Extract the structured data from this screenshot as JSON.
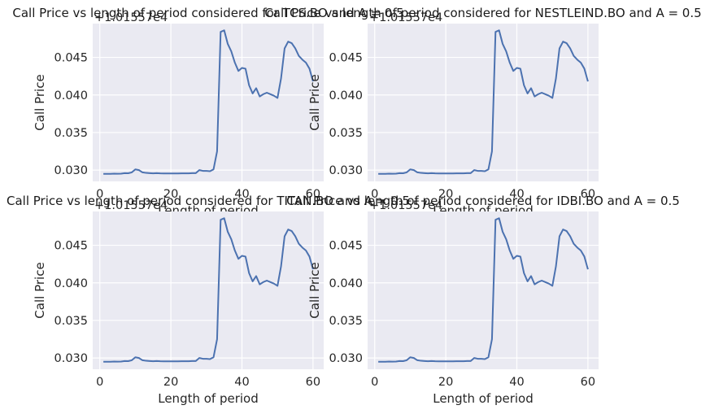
{
  "chart_data": [
    {
      "type": "line",
      "title": "Call Price vs length of period considered for TCS.BO and A = 0.5",
      "xlabel": "Length of period",
      "ylabel": "Call Price",
      "offset_text": "+1.01557e4",
      "xlim": [
        -2,
        63
      ],
      "ylim": [
        0.0285,
        0.0495
      ],
      "xticks": [
        0,
        20,
        40,
        60
      ],
      "yticks": [
        0.03,
        0.035,
        0.04,
        0.045
      ],
      "ytick_labels": [
        "0.030",
        "0.035",
        "0.040",
        "0.045"
      ],
      "grid": true,
      "line_color": "#4c72b0",
      "series": [
        {
          "x": [
            1,
            2,
            3,
            4,
            5,
            6,
            7,
            8,
            9,
            10,
            11,
            12,
            13,
            14,
            15,
            16,
            17,
            18,
            19,
            20,
            21,
            22,
            23,
            24,
            25,
            26,
            27,
            28,
            29,
            30,
            31,
            32,
            33,
            34,
            35,
            36,
            37,
            38,
            39,
            40,
            41,
            42,
            43,
            44,
            45,
            46,
            47,
            48,
            49,
            50,
            51,
            52,
            53,
            54,
            55,
            56,
            57,
            58,
            59,
            60
          ],
          "values": [
            0.0295,
            0.0295,
            0.0295,
            0.02953,
            0.02952,
            0.02953,
            0.0296,
            0.02958,
            0.0297,
            0.0301,
            0.03,
            0.0297,
            0.02963,
            0.0296,
            0.02957,
            0.0296,
            0.02957,
            0.02955,
            0.02955,
            0.02955,
            0.02955,
            0.02955,
            0.02957,
            0.02957,
            0.02957,
            0.0296,
            0.0296,
            0.03,
            0.0299,
            0.0299,
            0.02985,
            0.0301,
            0.0325,
            0.0484,
            0.0486,
            0.0468,
            0.0458,
            0.0443,
            0.0432,
            0.0436,
            0.0435,
            0.0413,
            0.0402,
            0.0409,
            0.0398,
            0.0401,
            0.0403,
            0.0401,
            0.0399,
            0.0396,
            0.0422,
            0.0462,
            0.0471,
            0.0469,
            0.0462,
            0.0452,
            0.0447,
            0.0443,
            0.0435,
            0.0418
          ]
        }
      ]
    },
    {
      "type": "line",
      "title": "Call Price vs length of period considered for NESTLEIND.BO and A = 0.5",
      "xlabel": "Length of period",
      "ylabel": "Call Price",
      "offset_text": "+1.01557e4",
      "xlim": [
        -2,
        63
      ],
      "ylim": [
        0.0285,
        0.0495
      ],
      "xticks": [
        0,
        20,
        40,
        60
      ],
      "yticks": [
        0.03,
        0.035,
        0.04,
        0.045
      ],
      "ytick_labels": [
        "0.030",
        "0.035",
        "0.040",
        "0.045"
      ],
      "grid": true,
      "line_color": "#4c72b0",
      "series": [
        {
          "x": [
            1,
            2,
            3,
            4,
            5,
            6,
            7,
            8,
            9,
            10,
            11,
            12,
            13,
            14,
            15,
            16,
            17,
            18,
            19,
            20,
            21,
            22,
            23,
            24,
            25,
            26,
            27,
            28,
            29,
            30,
            31,
            32,
            33,
            34,
            35,
            36,
            37,
            38,
            39,
            40,
            41,
            42,
            43,
            44,
            45,
            46,
            47,
            48,
            49,
            50,
            51,
            52,
            53,
            54,
            55,
            56,
            57,
            58,
            59,
            60
          ],
          "values": [
            0.0295,
            0.0295,
            0.0295,
            0.02953,
            0.02952,
            0.02953,
            0.0296,
            0.02958,
            0.0297,
            0.0301,
            0.03,
            0.0297,
            0.02963,
            0.0296,
            0.02957,
            0.0296,
            0.02957,
            0.02955,
            0.02955,
            0.02955,
            0.02955,
            0.02955,
            0.02957,
            0.02957,
            0.02957,
            0.0296,
            0.0296,
            0.03,
            0.0299,
            0.0299,
            0.02985,
            0.0301,
            0.0325,
            0.0484,
            0.0486,
            0.0468,
            0.0458,
            0.0443,
            0.0432,
            0.0436,
            0.0435,
            0.0413,
            0.0402,
            0.0409,
            0.0398,
            0.0401,
            0.0403,
            0.0401,
            0.0399,
            0.0396,
            0.0422,
            0.0462,
            0.0471,
            0.0469,
            0.0462,
            0.0452,
            0.0447,
            0.0443,
            0.0435,
            0.0418
          ]
        }
      ]
    },
    {
      "type": "line",
      "title": "Call Price vs length of period considered for TITAN.BO and A = 0.5",
      "xlabel": "Length of period",
      "ylabel": "Call Price",
      "offset_text": "+1.01557e4",
      "xlim": [
        -2,
        63
      ],
      "ylim": [
        0.0285,
        0.0495
      ],
      "xticks": [
        0,
        20,
        40,
        60
      ],
      "yticks": [
        0.03,
        0.035,
        0.04,
        0.045
      ],
      "ytick_labels": [
        "0.030",
        "0.035",
        "0.040",
        "0.045"
      ],
      "grid": true,
      "line_color": "#4c72b0",
      "series": [
        {
          "x": [
            1,
            2,
            3,
            4,
            5,
            6,
            7,
            8,
            9,
            10,
            11,
            12,
            13,
            14,
            15,
            16,
            17,
            18,
            19,
            20,
            21,
            22,
            23,
            24,
            25,
            26,
            27,
            28,
            29,
            30,
            31,
            32,
            33,
            34,
            35,
            36,
            37,
            38,
            39,
            40,
            41,
            42,
            43,
            44,
            45,
            46,
            47,
            48,
            49,
            50,
            51,
            52,
            53,
            54,
            55,
            56,
            57,
            58,
            59,
            60
          ],
          "values": [
            0.0295,
            0.0295,
            0.0295,
            0.02953,
            0.02952,
            0.02953,
            0.0296,
            0.02958,
            0.0297,
            0.0301,
            0.03,
            0.0297,
            0.02963,
            0.0296,
            0.02957,
            0.0296,
            0.02957,
            0.02955,
            0.02955,
            0.02955,
            0.02955,
            0.02955,
            0.02957,
            0.02957,
            0.02957,
            0.0296,
            0.0296,
            0.03,
            0.0299,
            0.0299,
            0.02985,
            0.0301,
            0.0325,
            0.0484,
            0.0486,
            0.0468,
            0.0458,
            0.0443,
            0.0432,
            0.0436,
            0.0435,
            0.0413,
            0.0402,
            0.0409,
            0.0398,
            0.0401,
            0.0403,
            0.0401,
            0.0399,
            0.0396,
            0.0422,
            0.0462,
            0.0471,
            0.0469,
            0.0462,
            0.0452,
            0.0447,
            0.0443,
            0.0435,
            0.0418
          ]
        }
      ]
    },
    {
      "type": "line",
      "title": "Call Price vs length of period considered for IDBI.BO and A = 0.5",
      "xlabel": "Length of period",
      "ylabel": "Call Price",
      "offset_text": "+1.01557e4",
      "xlim": [
        -2,
        63
      ],
      "ylim": [
        0.0285,
        0.0495
      ],
      "xticks": [
        0,
        20,
        40,
        60
      ],
      "yticks": [
        0.03,
        0.035,
        0.04,
        0.045
      ],
      "ytick_labels": [
        "0.030",
        "0.035",
        "0.040",
        "0.045"
      ],
      "grid": true,
      "line_color": "#4c72b0",
      "series": [
        {
          "x": [
            1,
            2,
            3,
            4,
            5,
            6,
            7,
            8,
            9,
            10,
            11,
            12,
            13,
            14,
            15,
            16,
            17,
            18,
            19,
            20,
            21,
            22,
            23,
            24,
            25,
            26,
            27,
            28,
            29,
            30,
            31,
            32,
            33,
            34,
            35,
            36,
            37,
            38,
            39,
            40,
            41,
            42,
            43,
            44,
            45,
            46,
            47,
            48,
            49,
            50,
            51,
            52,
            53,
            54,
            55,
            56,
            57,
            58,
            59,
            60
          ],
          "values": [
            0.0295,
            0.0295,
            0.0295,
            0.02953,
            0.02952,
            0.02953,
            0.0296,
            0.02958,
            0.0297,
            0.0301,
            0.03,
            0.0297,
            0.02963,
            0.0296,
            0.02957,
            0.0296,
            0.02957,
            0.02955,
            0.02955,
            0.02955,
            0.02955,
            0.02955,
            0.02957,
            0.02957,
            0.02957,
            0.0296,
            0.0296,
            0.03,
            0.0299,
            0.0299,
            0.02985,
            0.0301,
            0.0325,
            0.0484,
            0.0486,
            0.0468,
            0.0458,
            0.0443,
            0.0432,
            0.0436,
            0.0435,
            0.0413,
            0.0402,
            0.0409,
            0.0398,
            0.0401,
            0.0403,
            0.0401,
            0.0399,
            0.0396,
            0.0422,
            0.0462,
            0.0471,
            0.0469,
            0.0462,
            0.0452,
            0.0447,
            0.0443,
            0.0435,
            0.0418
          ]
        }
      ]
    }
  ]
}
